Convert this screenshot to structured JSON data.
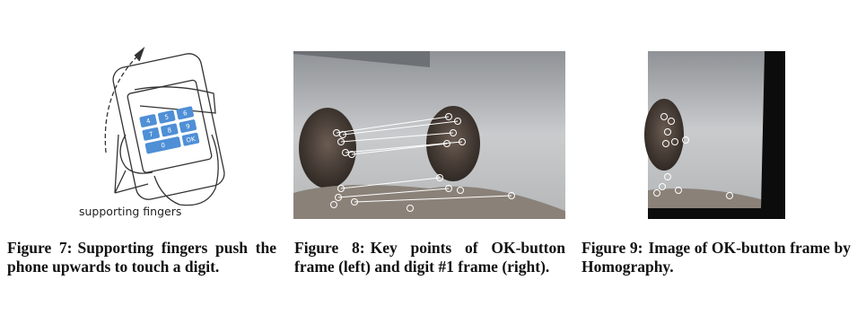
{
  "figures": [
    {
      "label": "Figure 7:",
      "caption": "Supporting fingers push the phone upwards to touch a digit.",
      "annotation": "supporting fingers",
      "keys": [
        "4",
        "5",
        "6",
        "7",
        "8",
        "9",
        "0",
        "OK"
      ]
    },
    {
      "label": "Figure 8:",
      "caption": "Key points of OK-button frame (left) and digit #1 frame (right)."
    },
    {
      "label": "Figure 9:",
      "caption": "Image of OK-button frame by Homography."
    }
  ]
}
